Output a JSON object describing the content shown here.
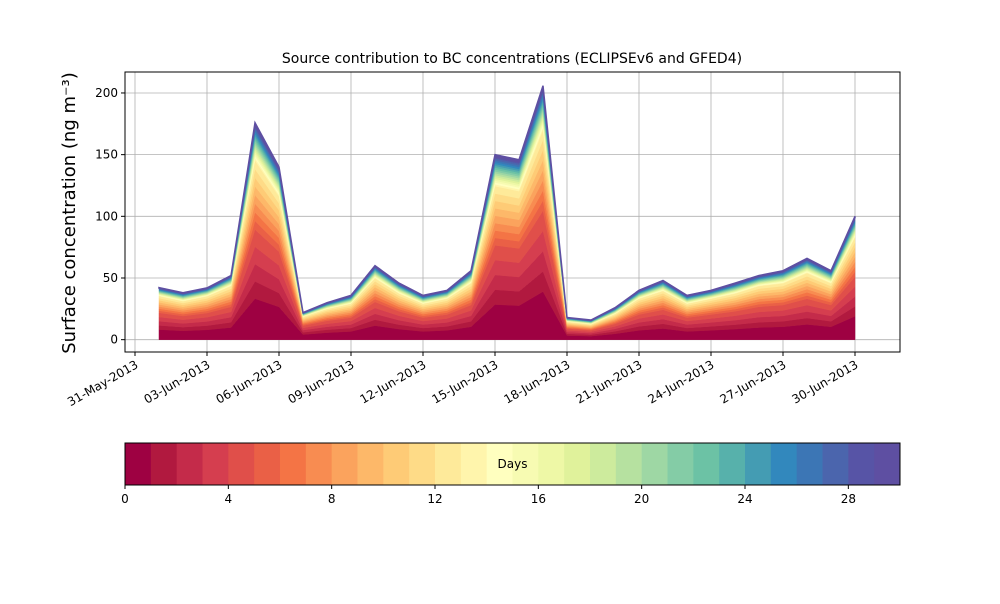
{
  "chart_data": {
    "type": "stacked_area",
    "title": "Source contribution to BC concentrations (ECLIPSEv6 and GFED4)",
    "ylabel": "Surface concentration (ng m⁻³)",
    "x": [
      "2013-06-01",
      "2013-06-02",
      "2013-06-03",
      "2013-06-04",
      "2013-06-05",
      "2013-06-06",
      "2013-06-07",
      "2013-06-08",
      "2013-06-09",
      "2013-06-10",
      "2013-06-11",
      "2013-06-12",
      "2013-06-13",
      "2013-06-14",
      "2013-06-15",
      "2013-06-16",
      "2013-06-17",
      "2013-06-18",
      "2013-06-19",
      "2013-06-20",
      "2013-06-21",
      "2013-06-22",
      "2013-06-23",
      "2013-06-24",
      "2013-06-25",
      "2013-06-26",
      "2013-06-27",
      "2013-06-28",
      "2013-06-29",
      "2013-06-30"
    ],
    "xlim": [
      "2013-05-30T14:00",
      "2013-07-01T21:00"
    ],
    "xticks": [
      {
        "value": "2013-05-31",
        "label": "31-May-2013"
      },
      {
        "value": "2013-06-03",
        "label": "03-Jun-2013"
      },
      {
        "value": "2013-06-06",
        "label": "06-Jun-2013"
      },
      {
        "value": "2013-06-09",
        "label": "09-Jun-2013"
      },
      {
        "value": "2013-06-12",
        "label": "12-Jun-2013"
      },
      {
        "value": "2013-06-15",
        "label": "15-Jun-2013"
      },
      {
        "value": "2013-06-18",
        "label": "18-Jun-2013"
      },
      {
        "value": "2013-06-21",
        "label": "21-Jun-2013"
      },
      {
        "value": "2013-06-24",
        "label": "24-Jun-2013"
      },
      {
        "value": "2013-06-27",
        "label": "27-Jun-2013"
      },
      {
        "value": "2013-06-30",
        "label": "30-Jun-2013"
      }
    ],
    "ylim": [
      -10,
      217
    ],
    "yticks": [
      0,
      50,
      100,
      150,
      200
    ],
    "grid": true,
    "series": [
      {
        "color": "#9e0142",
        "values": [
          8.2,
          7.2,
          8.0,
          9.9,
          33.3,
          26.6,
          4.2,
          5.7,
          6.7,
          11.4,
          8.6,
          6.7,
          7.6,
          10.5,
          28.5,
          27.6,
          39,
          3.4,
          2.9,
          4.8,
          7.6,
          9.1,
          6.7,
          7.6,
          8.6,
          9.9,
          10.5,
          12.4,
          10.5,
          19
        ]
      },
      {
        "color": "#b1193f",
        "values": [
          3.4,
          3.0,
          3.4,
          4.2,
          14,
          11.2,
          1.8,
          2.4,
          2.8,
          4.8,
          3.6,
          2.8,
          3.2,
          4.4,
          12,
          11.6,
          16.4,
          1.4,
          1.2,
          2,
          3.2,
          3.8,
          2.8,
          3.2,
          3.6,
          4.2,
          4.4,
          5.2,
          4.4,
          8
        ]
      },
      {
        "color": "#c42b4a",
        "values": [
          3.4,
          3.0,
          3.4,
          4.2,
          14,
          11.2,
          1.8,
          2.4,
          2.8,
          4.8,
          3.6,
          2.8,
          3.2,
          4.4,
          12,
          11.6,
          16.4,
          1.4,
          1.2,
          2,
          3.2,
          3.8,
          2.8,
          3.2,
          3.6,
          4.2,
          4.4,
          5.2,
          4.4,
          8
        ]
      },
      {
        "color": "#d53e4f",
        "values": [
          3.4,
          3.0,
          3.4,
          4.2,
          14,
          11.2,
          1.8,
          2.4,
          2.8,
          4.8,
          3.6,
          2.8,
          3.2,
          4.4,
          12,
          11.6,
          16.4,
          1.4,
          1.2,
          2,
          3.2,
          3.8,
          2.8,
          3.2,
          3.6,
          4.2,
          4.4,
          5.2,
          4.4,
          8
        ]
      },
      {
        "color": "#e04f4a",
        "values": [
          3.4,
          3.0,
          3.4,
          4.2,
          14,
          11.2,
          1.8,
          2.4,
          2.8,
          4.8,
          3.6,
          2.8,
          3.2,
          4.4,
          12,
          11.6,
          16.4,
          1.4,
          1.2,
          2,
          3.2,
          3.8,
          2.8,
          3.2,
          3.6,
          4.2,
          4.4,
          5.2,
          4.4,
          8
        ]
      },
      {
        "color": "#ea6046",
        "values": [
          1.7,
          1.5,
          1.7,
          2.1,
          7,
          5.6,
          0.9,
          1.2,
          1.4,
          2.4,
          1.8,
          1.4,
          1.6,
          2.2,
          6,
          5.8,
          8.2,
          0.7,
          0.6,
          1,
          1.6,
          1.9,
          1.4,
          1.6,
          1.8,
          2.1,
          2.2,
          2.6,
          2.2,
          4
        ]
      },
      {
        "color": "#f47445",
        "values": [
          1.7,
          1.5,
          1.7,
          2.1,
          7,
          5.6,
          0.9,
          1.2,
          1.4,
          2.4,
          1.8,
          1.4,
          1.6,
          2.2,
          6,
          5.8,
          8.2,
          0.7,
          0.6,
          1,
          1.6,
          1.9,
          1.4,
          1.6,
          1.8,
          2.1,
          2.2,
          2.6,
          2.2,
          4
        ]
      },
      {
        "color": "#f88c51",
        "values": [
          1.7,
          1.5,
          1.7,
          2.1,
          7,
          5.6,
          0.9,
          1.2,
          1.4,
          2.4,
          1.8,
          1.4,
          1.6,
          2.2,
          6,
          5.8,
          8.2,
          0.7,
          0.6,
          1,
          1.6,
          1.9,
          1.4,
          1.6,
          1.8,
          2.1,
          2.2,
          2.6,
          2.2,
          4
        ]
      },
      {
        "color": "#fba35d",
        "values": [
          1.7,
          1.5,
          1.7,
          2.1,
          7,
          5.6,
          0.9,
          1.2,
          1.4,
          2.4,
          1.8,
          1.4,
          1.6,
          2.2,
          6,
          5.8,
          8.2,
          0.7,
          0.6,
          1,
          1.6,
          1.9,
          1.4,
          1.6,
          1.8,
          2.1,
          2.2,
          2.6,
          2.2,
          4
        ]
      },
      {
        "color": "#fdb869",
        "values": [
          1.7,
          1.5,
          1.7,
          2.1,
          7,
          5.6,
          0.9,
          1.2,
          1.4,
          2.4,
          1.8,
          1.4,
          1.6,
          2.2,
          6,
          5.8,
          8.2,
          0.7,
          0.6,
          1,
          1.6,
          1.9,
          1.4,
          1.6,
          1.8,
          2.1,
          2.2,
          2.6,
          2.2,
          4
        ]
      },
      {
        "color": "#fecb76",
        "values": [
          1.7,
          1.5,
          1.7,
          2.1,
          7,
          5.6,
          0.9,
          1.2,
          1.4,
          2.4,
          1.8,
          1.4,
          1.6,
          2.2,
          6,
          5.8,
          8.2,
          0.7,
          0.6,
          1,
          1.6,
          1.9,
          1.4,
          1.6,
          1.8,
          2.1,
          2.2,
          2.6,
          2.2,
          4
        ]
      },
      {
        "color": "#fedb87",
        "values": [
          1.7,
          1.5,
          1.7,
          2.1,
          7,
          5.6,
          0.9,
          1.2,
          1.4,
          2.4,
          1.8,
          1.4,
          1.6,
          2.2,
          6,
          5.8,
          8.2,
          0.7,
          0.6,
          1,
          1.6,
          1.9,
          1.4,
          1.6,
          1.8,
          2.1,
          2.2,
          2.6,
          2.2,
          4
        ]
      },
      {
        "color": "#feea9a",
        "values": [
          1.7,
          1.5,
          1.7,
          2.1,
          7,
          5.6,
          0.9,
          1.2,
          1.4,
          2.4,
          1.8,
          1.4,
          1.6,
          2.2,
          6,
          5.8,
          8.2,
          0.7,
          0.6,
          1,
          1.6,
          1.9,
          1.4,
          1.6,
          1.8,
          2.1,
          2.2,
          2.6,
          2.2,
          4
        ]
      },
      {
        "color": "#fff5ac",
        "values": [
          0.4,
          0.4,
          0.4,
          0.5,
          1.8,
          1.4,
          0.2,
          0.3,
          0.4,
          0.6,
          0.5,
          0.4,
          0.4,
          0.6,
          1.5,
          1.5,
          2.1,
          0.2,
          0.2,
          0.3,
          0.4,
          0.5,
          0.4,
          0.4,
          0.5,
          0.5,
          0.6,
          0.7,
          0.6,
          1
        ]
      },
      {
        "color": "#ffffbf",
        "values": [
          0.4,
          0.4,
          0.4,
          0.5,
          1.8,
          1.4,
          0.2,
          0.3,
          0.4,
          0.6,
          0.5,
          0.4,
          0.4,
          0.6,
          1.5,
          1.5,
          2.1,
          0.2,
          0.2,
          0.3,
          0.4,
          0.5,
          0.4,
          0.4,
          0.5,
          0.5,
          0.6,
          0.7,
          0.6,
          1
        ]
      },
      {
        "color": "#f7fbb2",
        "values": [
          0.4,
          0.4,
          0.4,
          0.5,
          1.8,
          1.4,
          0.2,
          0.3,
          0.4,
          0.6,
          0.5,
          0.4,
          0.4,
          0.6,
          1.5,
          1.5,
          2.1,
          0.2,
          0.2,
          0.3,
          0.4,
          0.5,
          0.4,
          0.4,
          0.5,
          0.5,
          0.6,
          0.7,
          0.6,
          1
        ]
      },
      {
        "color": "#eef8a6",
        "values": [
          0.4,
          0.4,
          0.4,
          0.5,
          1.8,
          1.4,
          0.2,
          0.3,
          0.4,
          0.6,
          0.5,
          0.4,
          0.4,
          0.6,
          1.5,
          1.5,
          2.1,
          0.2,
          0.2,
          0.3,
          0.4,
          0.5,
          0.4,
          0.4,
          0.5,
          0.5,
          0.6,
          0.7,
          0.6,
          1
        ]
      },
      {
        "color": "#e0f29b",
        "values": [
          0.4,
          0.4,
          0.4,
          0.5,
          1.8,
          1.4,
          0.2,
          0.3,
          0.4,
          0.6,
          0.5,
          0.4,
          0.4,
          0.6,
          1.5,
          1.5,
          2.1,
          0.2,
          0.2,
          0.3,
          0.4,
          0.5,
          0.4,
          0.4,
          0.5,
          0.5,
          0.6,
          0.7,
          0.6,
          1
        ]
      },
      {
        "color": "#cdeb9d",
        "values": [
          0.4,
          0.4,
          0.4,
          0.5,
          1.8,
          1.4,
          0.2,
          0.3,
          0.4,
          0.6,
          0.5,
          0.4,
          0.4,
          0.6,
          1.5,
          1.5,
          2.1,
          0.2,
          0.2,
          0.3,
          0.4,
          0.5,
          0.4,
          0.4,
          0.5,
          0.5,
          0.6,
          0.7,
          0.6,
          1
        ]
      },
      {
        "color": "#b6e1a0",
        "values": [
          0.4,
          0.4,
          0.4,
          0.5,
          1.8,
          1.4,
          0.2,
          0.3,
          0.4,
          0.6,
          0.5,
          0.4,
          0.4,
          0.6,
          1.5,
          1.5,
          2.1,
          0.2,
          0.2,
          0.3,
          0.4,
          0.5,
          0.4,
          0.4,
          0.5,
          0.5,
          0.6,
          0.7,
          0.6,
          1
        ]
      },
      {
        "color": "#9ed7a4",
        "values": [
          0.4,
          0.4,
          0.4,
          0.5,
          1.8,
          1.4,
          0.2,
          0.3,
          0.4,
          0.6,
          0.5,
          0.4,
          0.4,
          0.6,
          1.5,
          1.5,
          2.1,
          0.2,
          0.2,
          0.3,
          0.4,
          0.5,
          0.4,
          0.4,
          0.5,
          0.5,
          0.6,
          0.7,
          0.6,
          1
        ]
      },
      {
        "color": "#84cca6",
        "values": [
          0.4,
          0.4,
          0.4,
          0.5,
          1.8,
          1.4,
          0.2,
          0.3,
          0.4,
          0.6,
          0.5,
          0.4,
          0.4,
          0.6,
          1.5,
          1.5,
          2.1,
          0.2,
          0.2,
          0.3,
          0.4,
          0.5,
          0.4,
          0.4,
          0.5,
          0.5,
          0.6,
          0.7,
          0.6,
          1
        ]
      },
      {
        "color": "#6cc2a5",
        "values": [
          0.4,
          0.4,
          0.4,
          0.5,
          1.8,
          1.4,
          0.2,
          0.3,
          0.4,
          0.6,
          0.5,
          0.4,
          0.4,
          0.6,
          1.5,
          1.5,
          2.1,
          0.2,
          0.2,
          0.3,
          0.4,
          0.5,
          0.4,
          0.4,
          0.5,
          0.5,
          0.6,
          0.7,
          0.6,
          1
        ]
      },
      {
        "color": "#57b1ab",
        "values": [
          0.4,
          0.4,
          0.4,
          0.5,
          1.8,
          1.4,
          0.2,
          0.3,
          0.4,
          0.6,
          0.5,
          0.4,
          0.4,
          0.6,
          1.5,
          1.5,
          2.1,
          0.2,
          0.2,
          0.3,
          0.4,
          0.5,
          0.4,
          0.4,
          0.5,
          0.5,
          0.6,
          0.7,
          0.6,
          1
        ]
      },
      {
        "color": "#449cb3",
        "values": [
          0.4,
          0.4,
          0.4,
          0.5,
          1.8,
          1.4,
          0.2,
          0.3,
          0.4,
          0.6,
          0.5,
          0.4,
          0.4,
          0.6,
          1.5,
          1.5,
          2.1,
          0.2,
          0.2,
          0.3,
          0.4,
          0.5,
          0.4,
          0.4,
          0.5,
          0.5,
          0.6,
          0.7,
          0.6,
          1
        ]
      },
      {
        "color": "#3288bd",
        "values": [
          0.4,
          0.4,
          0.4,
          0.5,
          1.8,
          1.4,
          0.2,
          0.3,
          0.4,
          0.6,
          0.5,
          0.4,
          0.4,
          0.6,
          1.5,
          1.5,
          2.1,
          0.2,
          0.2,
          0.3,
          0.4,
          0.5,
          0.4,
          0.4,
          0.5,
          0.5,
          0.6,
          0.7,
          0.6,
          1
        ]
      },
      {
        "color": "#3c76b5",
        "values": [
          0.4,
          0.4,
          0.4,
          0.5,
          1.8,
          1.4,
          0.2,
          0.3,
          0.4,
          0.6,
          0.5,
          0.4,
          0.4,
          0.6,
          1.5,
          1.5,
          2.1,
          0.2,
          0.2,
          0.3,
          0.4,
          0.5,
          0.4,
          0.4,
          0.5,
          0.5,
          0.6,
          0.7,
          0.6,
          1
        ]
      },
      {
        "color": "#4b65ad",
        "values": [
          0.4,
          0.4,
          0.4,
          0.5,
          1.8,
          1.4,
          0.2,
          0.3,
          0.4,
          0.6,
          0.5,
          0.4,
          0.4,
          0.6,
          1.5,
          1.5,
          2.1,
          0.2,
          0.2,
          0.3,
          0.4,
          0.5,
          0.4,
          0.4,
          0.5,
          0.5,
          0.6,
          0.7,
          0.6,
          1
        ]
      },
      {
        "color": "#5754a6",
        "values": [
          0.4,
          0.4,
          0.4,
          0.5,
          1.8,
          1.4,
          0.2,
          0.3,
          0.4,
          0.6,
          0.5,
          0.4,
          0.4,
          0.6,
          1.5,
          1.5,
          2.1,
          0.2,
          0.2,
          0.3,
          0.4,
          0.5,
          0.4,
          0.4,
          0.5,
          0.5,
          0.6,
          0.7,
          0.6,
          1
        ]
      },
      {
        "color": "#5e4fa2",
        "values": [
          0.4,
          0.4,
          0.4,
          0.5,
          1.8,
          1.4,
          0.2,
          0.3,
          0.4,
          0.6,
          0.5,
          0.4,
          0.4,
          0.6,
          1.5,
          1.5,
          2.1,
          0.2,
          0.2,
          0.3,
          0.4,
          0.5,
          0.4,
          0.4,
          0.5,
          0.5,
          0.6,
          0.7,
          0.6,
          1
        ]
      }
    ],
    "colorbar": {
      "label": "Days",
      "lim": [
        0,
        30
      ],
      "ticks": [
        0,
        4,
        8,
        12,
        16,
        20,
        24,
        28
      ]
    }
  }
}
